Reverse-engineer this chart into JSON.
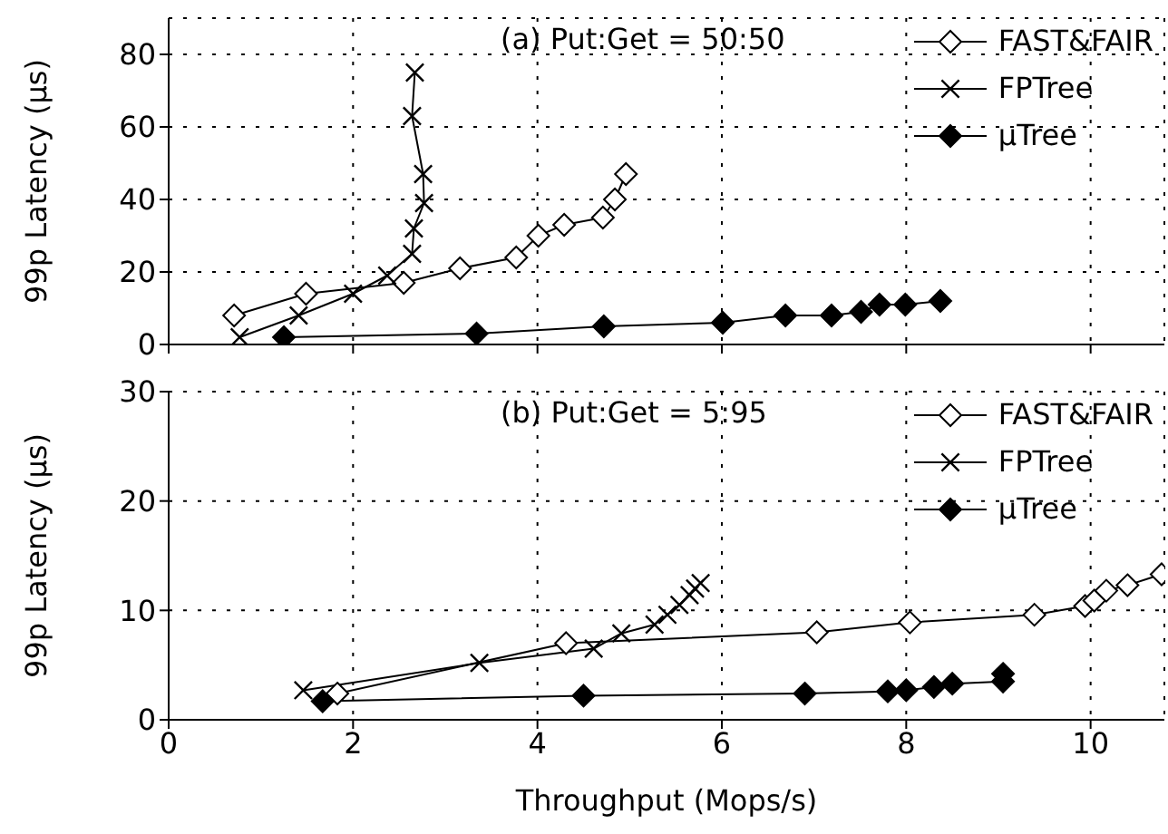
{
  "chart_data": [
    {
      "type": "line",
      "annotations": [
        "(a) Put:Get = 50:50"
      ],
      "ylabel": "99p Latency (µs)",
      "xlim": [
        0,
        10.8
      ],
      "xticks": [
        0,
        2,
        4,
        6,
        8,
        10
      ],
      "ylim": [
        0,
        90
      ],
      "yticks": [
        0,
        20,
        40,
        60,
        80
      ],
      "tick_labels": "y",
      "grid": true,
      "legend": "top right",
      "line_style": "solid",
      "series": [
        {
          "name": "FAST&FAIR",
          "color": "#000000",
          "marker": "diamond-open",
          "x": [
            0.71,
            1.49,
            2.55,
            3.16,
            3.77,
            4.01,
            4.29,
            4.71,
            4.84,
            4.96
          ],
          "values": [
            8,
            14,
            17,
            21,
            24,
            30,
            33,
            35,
            40,
            47
          ]
        },
        {
          "name": "FPTree",
          "color": "#000000",
          "marker": "cross",
          "x": [
            0.77,
            1.41,
            2.0,
            2.37,
            2.64,
            2.66,
            2.77,
            2.76,
            2.64,
            2.67
          ],
          "values": [
            2,
            8,
            14,
            19,
            25,
            32,
            39,
            47,
            63,
            75
          ]
        },
        {
          "name": "µTree",
          "color": "#000000",
          "marker": "diamond",
          "x": [
            1.25,
            3.34,
            4.72,
            6.01,
            6.69,
            7.19,
            7.51,
            7.71,
            7.99,
            8.37
          ],
          "values": [
            2,
            3,
            5,
            6,
            8,
            8,
            9,
            11,
            11,
            12
          ]
        }
      ]
    },
    {
      "type": "line",
      "annotations": [
        "(b) Put:Get = 5:95"
      ],
      "xlabel": "Throughput (Mops/s)",
      "ylabel": "99p Latency (µs)",
      "xlim": [
        0,
        10.8
      ],
      "xticks": [
        0,
        2,
        4,
        6,
        8,
        10
      ],
      "ylim": [
        0,
        30
      ],
      "yticks": [
        0,
        10,
        20,
        30
      ],
      "grid": true,
      "legend": "top right",
      "line_style": "solid",
      "series": [
        {
          "name": "FAST&FAIR",
          "color": "#000000",
          "marker": "diamond-open",
          "x": [
            1.83,
            4.31,
            7.03,
            8.04,
            9.39,
            9.94,
            10.04,
            10.17,
            10.4,
            10.77
          ],
          "values": [
            2.4,
            7,
            8,
            8.9,
            9.6,
            10.4,
            10.9,
            11.8,
            12.3,
            13.3
          ]
        },
        {
          "name": "FPTree",
          "color": "#000000",
          "marker": "cross",
          "x": [
            1.46,
            3.37,
            4.61,
            4.91,
            5.27,
            5.41,
            5.54,
            5.65,
            5.71,
            5.77
          ],
          "values": [
            2.7,
            5.2,
            6.5,
            7.9,
            8.7,
            9.6,
            10.5,
            11.4,
            12,
            12.5
          ]
        },
        {
          "name": "µTree",
          "color": "#000000",
          "marker": "diamond",
          "x": [
            1.67,
            4.5,
            6.9,
            7.8,
            8.0,
            8.3,
            8.5,
            9.05,
            9.05
          ],
          "values": [
            1.7,
            2.2,
            2.4,
            2.6,
            2.7,
            3.0,
            3.3,
            3.5,
            4.2
          ]
        }
      ]
    }
  ]
}
